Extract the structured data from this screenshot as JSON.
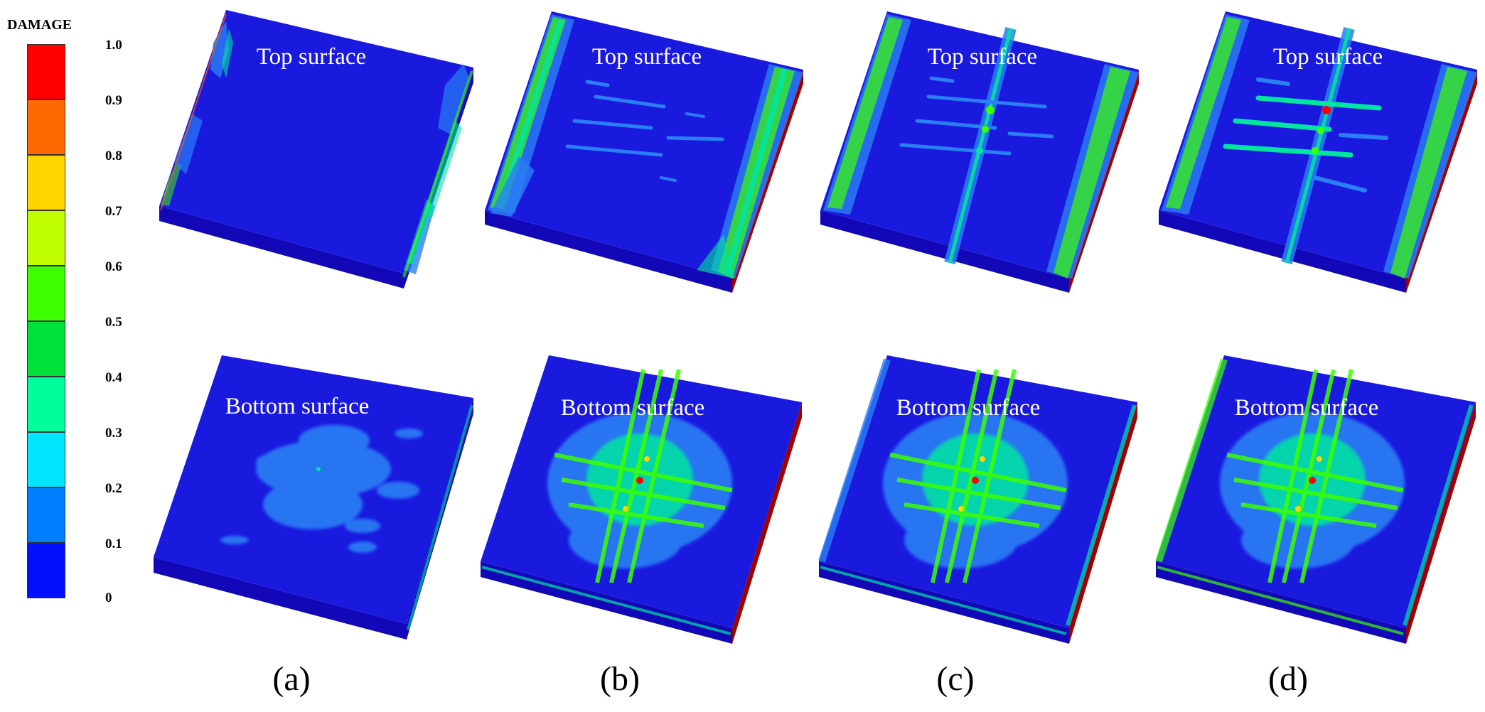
{
  "legend": {
    "title": "DAMAGE",
    "ticks": [
      "1.0",
      "0.9",
      "0.8",
      "0.7",
      "0.6",
      "0.5",
      "0.4",
      "0.3",
      "0.2",
      "0.1",
      "0"
    ],
    "colors_top_to_bottom": [
      "#ff0000",
      "#ff6a00",
      "#ffd400",
      "#bfff00",
      "#3cff00",
      "#00e13a",
      "#00ff9a",
      "#00e5ff",
      "#0080ff",
      "#0010ff"
    ]
  },
  "surface_labels": {
    "top": "Top surface",
    "bottom": "Bottom surface"
  },
  "panels": [
    {
      "label": "(a)"
    },
    {
      "label": "(b)"
    },
    {
      "label": "(c)"
    },
    {
      "label": "(d)"
    }
  ],
  "colors": {
    "plate_face": "#1a1adf",
    "plate_side": "#1208b8",
    "plate_edge": "#0a0890",
    "damage_low": "#2a7ff5",
    "damage_mid": "#00e5a0",
    "damage_high": "#3cff00",
    "damage_peak": "#ff0000",
    "label_text": "#ffffff"
  }
}
